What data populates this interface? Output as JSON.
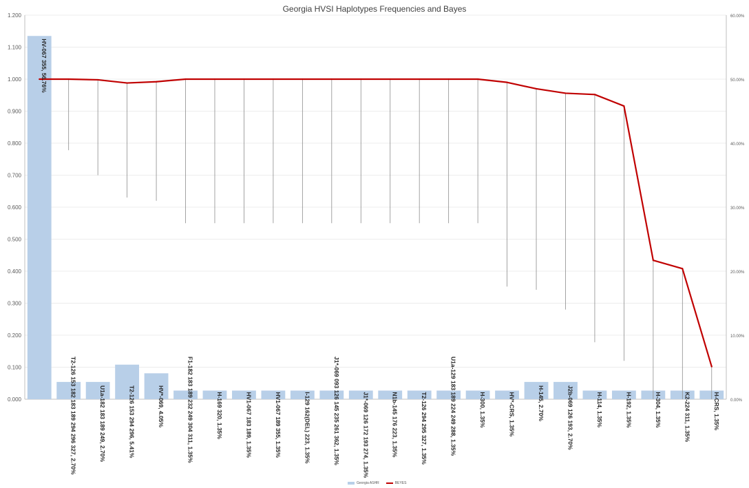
{
  "chart_data": {
    "type": "bar",
    "title": "Georgia HVSI Haplotypes Frequencies and Bayes",
    "categories": [
      "HV-067 355, 56.76%",
      "T2-126 153 182 183 189 294 296 327, 2.70%",
      "U1a-182 183 189 249, 2.70%",
      "T2-126 153 294 296, 5.41%",
      "HV*-069, 4.05%",
      "F1-182 183 189 232 249 304 311, 1.35%",
      "H-169 320, 1.35%",
      "HV1-067 183 189, 1.35%",
      "HV1-067 189 355, 1.35%",
      "I-129 162(DEL) 223, 1.35%",
      "J1*-069 093 126 145 235 261 362, 1.35%",
      "J1*-069 126 172 193 274, 1.35%",
      "N1b-145 176 223, 1.35%",
      "T2-126 294 295 327, 1.35%",
      "U1a-129 183 189 224 249 288, 1.35%",
      "H-300, 1.35%",
      "HV*-CRS, 1.35%",
      "H-145, 2.70%",
      "J2b-069 126 193, 2.70%",
      "H-114, 1.35%",
      "H-192, 1.35%",
      "H-304, 1.35%",
      "K2-224 311, 1.35%",
      "H-CRS, 1.35%"
    ],
    "bar_labels_inside": [
      "HV-067 355, 56.76%",
      "U1a-182 183 189 249, 2.70%",
      "T2-126 153 294 296, 5.41%",
      "HV*-069, 4.05%",
      "H-169 320, 1.35%",
      "HV1-067 183 189, 1.35%",
      "HV1-067 189 355, 1.35%",
      "I-129 162(DEL) 223, 1.35%",
      "J1*-069 126 172 193 274, 1.35%",
      "N1b-145 176 223, 1.35%",
      "T2-126 294 295 327, 1.35%",
      "H-300, 1.35%",
      "HV*-CRS, 1.35%",
      "H-145, 2.70%",
      "J2b-069 126 193, 2.70%",
      "H-114, 1.35%",
      "H-192, 1.35%",
      "H-304, 1.35%",
      "K2-224 311, 1.35%",
      "H-CRS, 1.35%"
    ],
    "series": [
      {
        "axis": "left",
        "kind": "bar",
        "color": "#b8cfe8",
        "values": [
          1.135,
          0.054,
          0.054,
          0.108,
          0.081,
          0.027,
          0.027,
          0.027,
          0.027,
          0.027,
          0.027,
          0.027,
          0.027,
          0.027,
          0.027,
          0.027,
          0.027,
          0.054,
          0.054,
          0.027,
          0.027,
          0.027,
          0.027,
          0.027
        ]
      },
      {
        "axis": "right",
        "kind": "line",
        "color": "#c00000",
        "values": [
          50.0,
          50.0,
          49.9,
          49.4,
          49.6,
          50.0,
          50.0,
          50.0,
          50.0,
          50.0,
          50.0,
          50.0,
          50.0,
          50.0,
          50.0,
          50.0,
          49.5,
          48.5,
          47.8,
          47.6,
          45.8,
          21.7,
          20.4,
          5.1
        ]
      }
    ],
    "drop_lines_to_right_axis_pct": [
      null,
      38.9,
      35.0,
      31.5,
      31.0,
      27.5,
      27.5,
      27.5,
      27.5,
      27.5,
      27.5,
      27.5,
      27.5,
      27.5,
      27.5,
      27.5,
      17.6,
      17.1,
      14.0,
      8.9,
      6.0,
      0.0,
      0.0,
      0.0
    ],
    "y_left": {
      "min": 0,
      "max": 1.2,
      "step": 0.1,
      "ticks": [
        "0.000",
        "0.100",
        "0.200",
        "0.300",
        "0.400",
        "0.500",
        "0.600",
        "0.700",
        "0.800",
        "0.900",
        "1.000",
        "1.100",
        "1.200"
      ]
    },
    "y_right": {
      "min": 0,
      "max": 60,
      "step": 10,
      "ticks": [
        "0.00%",
        "10.00%",
        "20.00%",
        "30.00%",
        "40.00%",
        "50.00%",
        "60.00%"
      ]
    },
    "grid": true,
    "legend": {
      "placement": "bottom",
      "entries": [
        {
          "label": "Georgia ASHR",
          "color": "#b8cfe8",
          "kind": "bar"
        },
        {
          "label": "BEYES",
          "color": "#c00000",
          "kind": "line"
        }
      ]
    }
  }
}
